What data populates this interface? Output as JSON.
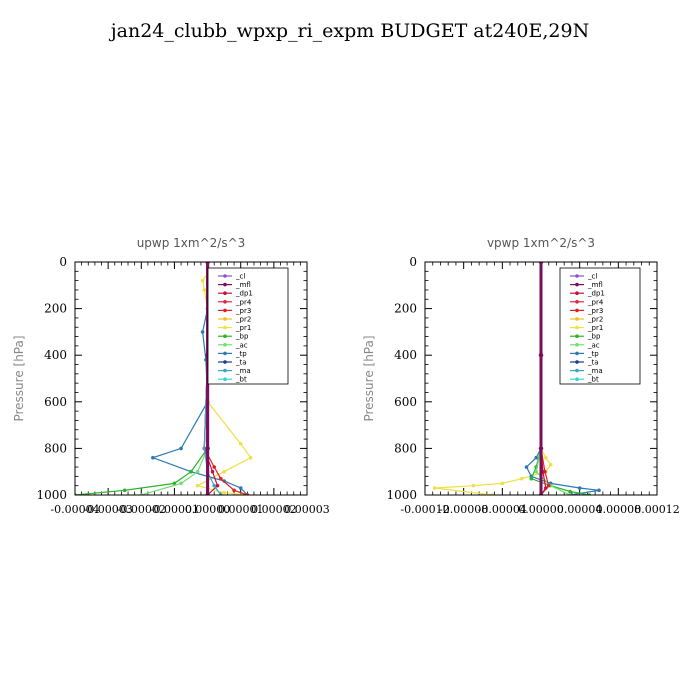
{
  "title": "jan24_clubb_wpxp_ri_expm  BUDGET at240E,29N",
  "legend_entries": [
    {
      "name": "_cl",
      "color": "#8a55c8"
    },
    {
      "name": "_mfl",
      "color": "#7a0e5a"
    },
    {
      "name": "_dp1",
      "color": "#c0143c"
    },
    {
      "name": "_pr4",
      "color": "#d42848"
    },
    {
      "name": "_pr3",
      "color": "#e02020"
    },
    {
      "name": "_pr2",
      "color": "#f0c020"
    },
    {
      "name": "_pr1",
      "color": "#f0e040"
    },
    {
      "name": "_bp",
      "color": "#30b030"
    },
    {
      "name": "_ac",
      "color": "#70e070"
    },
    {
      "name": "_tp",
      "color": "#2a7ab8"
    },
    {
      "name": "_ta",
      "color": "#1a3c88"
    },
    {
      "name": "_ma",
      "color": "#40a0d0"
    },
    {
      "name": "_bt",
      "color": "#30d8d8"
    }
  ],
  "chart_data": [
    {
      "type": "line",
      "title": "upwp   1xm^2/s^3",
      "ylabel": "Pressure [hPa]",
      "ylim": [
        1000,
        0
      ],
      "xlim": [
        -4e-05,
        3e-05
      ],
      "yticks": [
        0,
        200,
        400,
        600,
        800,
        1000
      ],
      "ytick_labels": [
        "0",
        "200",
        "400",
        "600",
        "800",
        "1000"
      ],
      "xticks": [
        -4e-05,
        -3e-05,
        -2e-05,
        -1e-05,
        0.0,
        1e-05,
        2e-05,
        3e-05
      ],
      "xtick_labels": [
        "-0.00004",
        "-0.00003",
        "-0.00002",
        "-0.00001",
        "0.00000",
        "0.00001",
        "0.00002",
        "0.00003"
      ],
      "series": [
        {
          "name": "_pr1",
          "x": [
            0,
            -1.5e-06,
            -1e-06,
            0,
            1e-06,
            5e-07,
            0,
            1e-05,
            1.3e-05,
            5e-06,
            -3e-06,
            5e-06,
            1.2e-05
          ],
          "y": [
            50,
            80,
            120,
            200,
            300,
            400,
            600,
            780,
            840,
            900,
            960,
            990,
            1000
          ]
        },
        {
          "name": "_tp",
          "x": [
            5e-07,
            1.5e-06,
            0,
            -1.5e-06,
            -5e-07,
            0,
            -8e-06,
            -1.65e-05,
            -5e-06,
            5e-06,
            1e-05,
            1.2e-05
          ],
          "y": [
            50,
            100,
            200,
            300,
            420,
            600,
            800,
            840,
            900,
            940,
            970,
            1000
          ]
        },
        {
          "name": "_bp",
          "x": [
            0,
            5e-07,
            3e-06,
            0,
            0,
            -5e-06,
            -1e-05,
            -2.5e-05,
            -4e-05
          ],
          "y": [
            0,
            200,
            420,
            500,
            800,
            900,
            950,
            980,
            1000
          ]
        },
        {
          "name": "_ac",
          "x": [
            0,
            5e-07,
            2.5e-06,
            0,
            0,
            -3e-06,
            -8e-06,
            -2e-05
          ],
          "y": [
            0,
            200,
            420,
            500,
            800,
            900,
            950,
            1000
          ]
        },
        {
          "name": "_pr3",
          "x": [
            0,
            0,
            -1e-06,
            2e-06,
            4e-06,
            8e-06,
            1.2e-05
          ],
          "y": [
            0,
            400,
            800,
            880,
            930,
            980,
            1000
          ]
        },
        {
          "name": "_dp1",
          "x": [
            0,
            0,
            -1e-06,
            1.5e-06,
            3e-06,
            0
          ],
          "y": [
            0,
            400,
            800,
            900,
            960,
            1000
          ]
        },
        {
          "name": "_ma",
          "x": [
            0,
            1e-06,
            0,
            0,
            -1e-06,
            0,
            2e-06,
            4e-06
          ],
          "y": [
            0,
            100,
            200,
            400,
            800,
            900,
            960,
            1000
          ]
        },
        {
          "name": "_cl",
          "x": [
            0,
            0,
            0,
            0
          ],
          "y": [
            0,
            400,
            800,
            1000
          ]
        },
        {
          "name": "_mfl",
          "x": [
            0,
            0,
            0,
            0
          ],
          "y": [
            0,
            400,
            800,
            1000
          ]
        }
      ]
    },
    {
      "type": "line",
      "title": "vpwp   1xm^2/s^3",
      "ylabel": "Pressure [hPa]",
      "ylim": [
        1000,
        0
      ],
      "xlim": [
        -0.00012,
        0.00012
      ],
      "yticks": [
        0,
        200,
        400,
        600,
        800,
        1000
      ],
      "ytick_labels": [
        "0",
        "200",
        "400",
        "600",
        "800",
        "1000"
      ],
      "xticks": [
        -0.00012,
        -8e-05,
        -4e-05,
        0.0,
        4e-05,
        8e-05,
        0.00012
      ],
      "xtick_labels": [
        "-0.00012",
        "-0.00008",
        "-0.00004",
        "0.00000",
        "0.00004",
        "0.00008",
        "0.00012"
      ],
      "series": [
        {
          "name": "_pr1",
          "x": [
            0,
            0,
            5e-06,
            1e-05,
            5e-06,
            -2e-05,
            -4e-05,
            -7e-05,
            -0.00011,
            -5e-05
          ],
          "y": [
            0,
            800,
            840,
            870,
            900,
            930,
            950,
            960,
            970,
            1000
          ]
        },
        {
          "name": "_tp",
          "x": [
            0,
            0,
            -5e-06,
            -1.5e-05,
            -1e-05,
            1e-05,
            4e-05,
            6e-05,
            3e-05
          ],
          "y": [
            0,
            800,
            840,
            880,
            920,
            950,
            970,
            980,
            1000
          ]
        },
        {
          "name": "_bp",
          "x": [
            0,
            0,
            -5e-06,
            -1e-05,
            1e-05,
            3e-05,
            5e-05
          ],
          "y": [
            0,
            800,
            880,
            930,
            960,
            985,
            1000
          ]
        },
        {
          "name": "_ac",
          "x": [
            0,
            0,
            -5e-06,
            1e-05,
            3e-05
          ],
          "y": [
            0,
            800,
            900,
            960,
            1000
          ]
        },
        {
          "name": "_pr3",
          "x": [
            0,
            0,
            4e-06,
            8e-06,
            0
          ],
          "y": [
            0,
            800,
            900,
            960,
            1000
          ]
        },
        {
          "name": "_dp1",
          "x": [
            0,
            0,
            2e-06,
            5e-06,
            0
          ],
          "y": [
            0,
            800,
            900,
            970,
            1000
          ]
        },
        {
          "name": "_cl",
          "x": [
            0,
            0,
            0,
            0
          ],
          "y": [
            0,
            400,
            800,
            1000
          ]
        },
        {
          "name": "_mfl",
          "x": [
            0,
            0,
            0,
            0
          ],
          "y": [
            0,
            400,
            800,
            1000
          ]
        }
      ]
    }
  ]
}
